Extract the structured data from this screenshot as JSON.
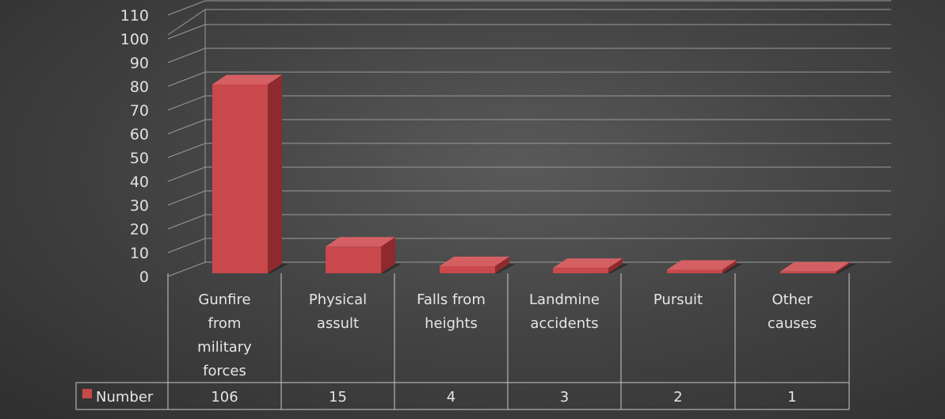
{
  "chart_data": {
    "type": "bar",
    "title": "",
    "xlabel": "",
    "ylabel": "",
    "categories": [
      [
        "Gunfire",
        "from",
        "military",
        "forces"
      ],
      [
        "Physical",
        "assult"
      ],
      [
        "Falls from",
        "heights"
      ],
      [
        "Landmine",
        "accidents"
      ],
      [
        "Pursuit"
      ],
      [
        "Other",
        "causes"
      ]
    ],
    "series": [
      {
        "name": "Number",
        "values": [
          106,
          15,
          4,
          3,
          2,
          1
        ]
      }
    ],
    "yticks": [
      0,
      10,
      20,
      30,
      40,
      50,
      60,
      70,
      80,
      90,
      100,
      110
    ],
    "ylim": [
      0,
      120
    ],
    "grid": true,
    "legend": "data-table-left",
    "colors": {
      "bar_front": "#c9484b",
      "bar_side": "#8e2a2d",
      "bar_top": "#d46064",
      "grid": "#9a9a9a",
      "table_border": "#c8c8c8"
    }
  }
}
